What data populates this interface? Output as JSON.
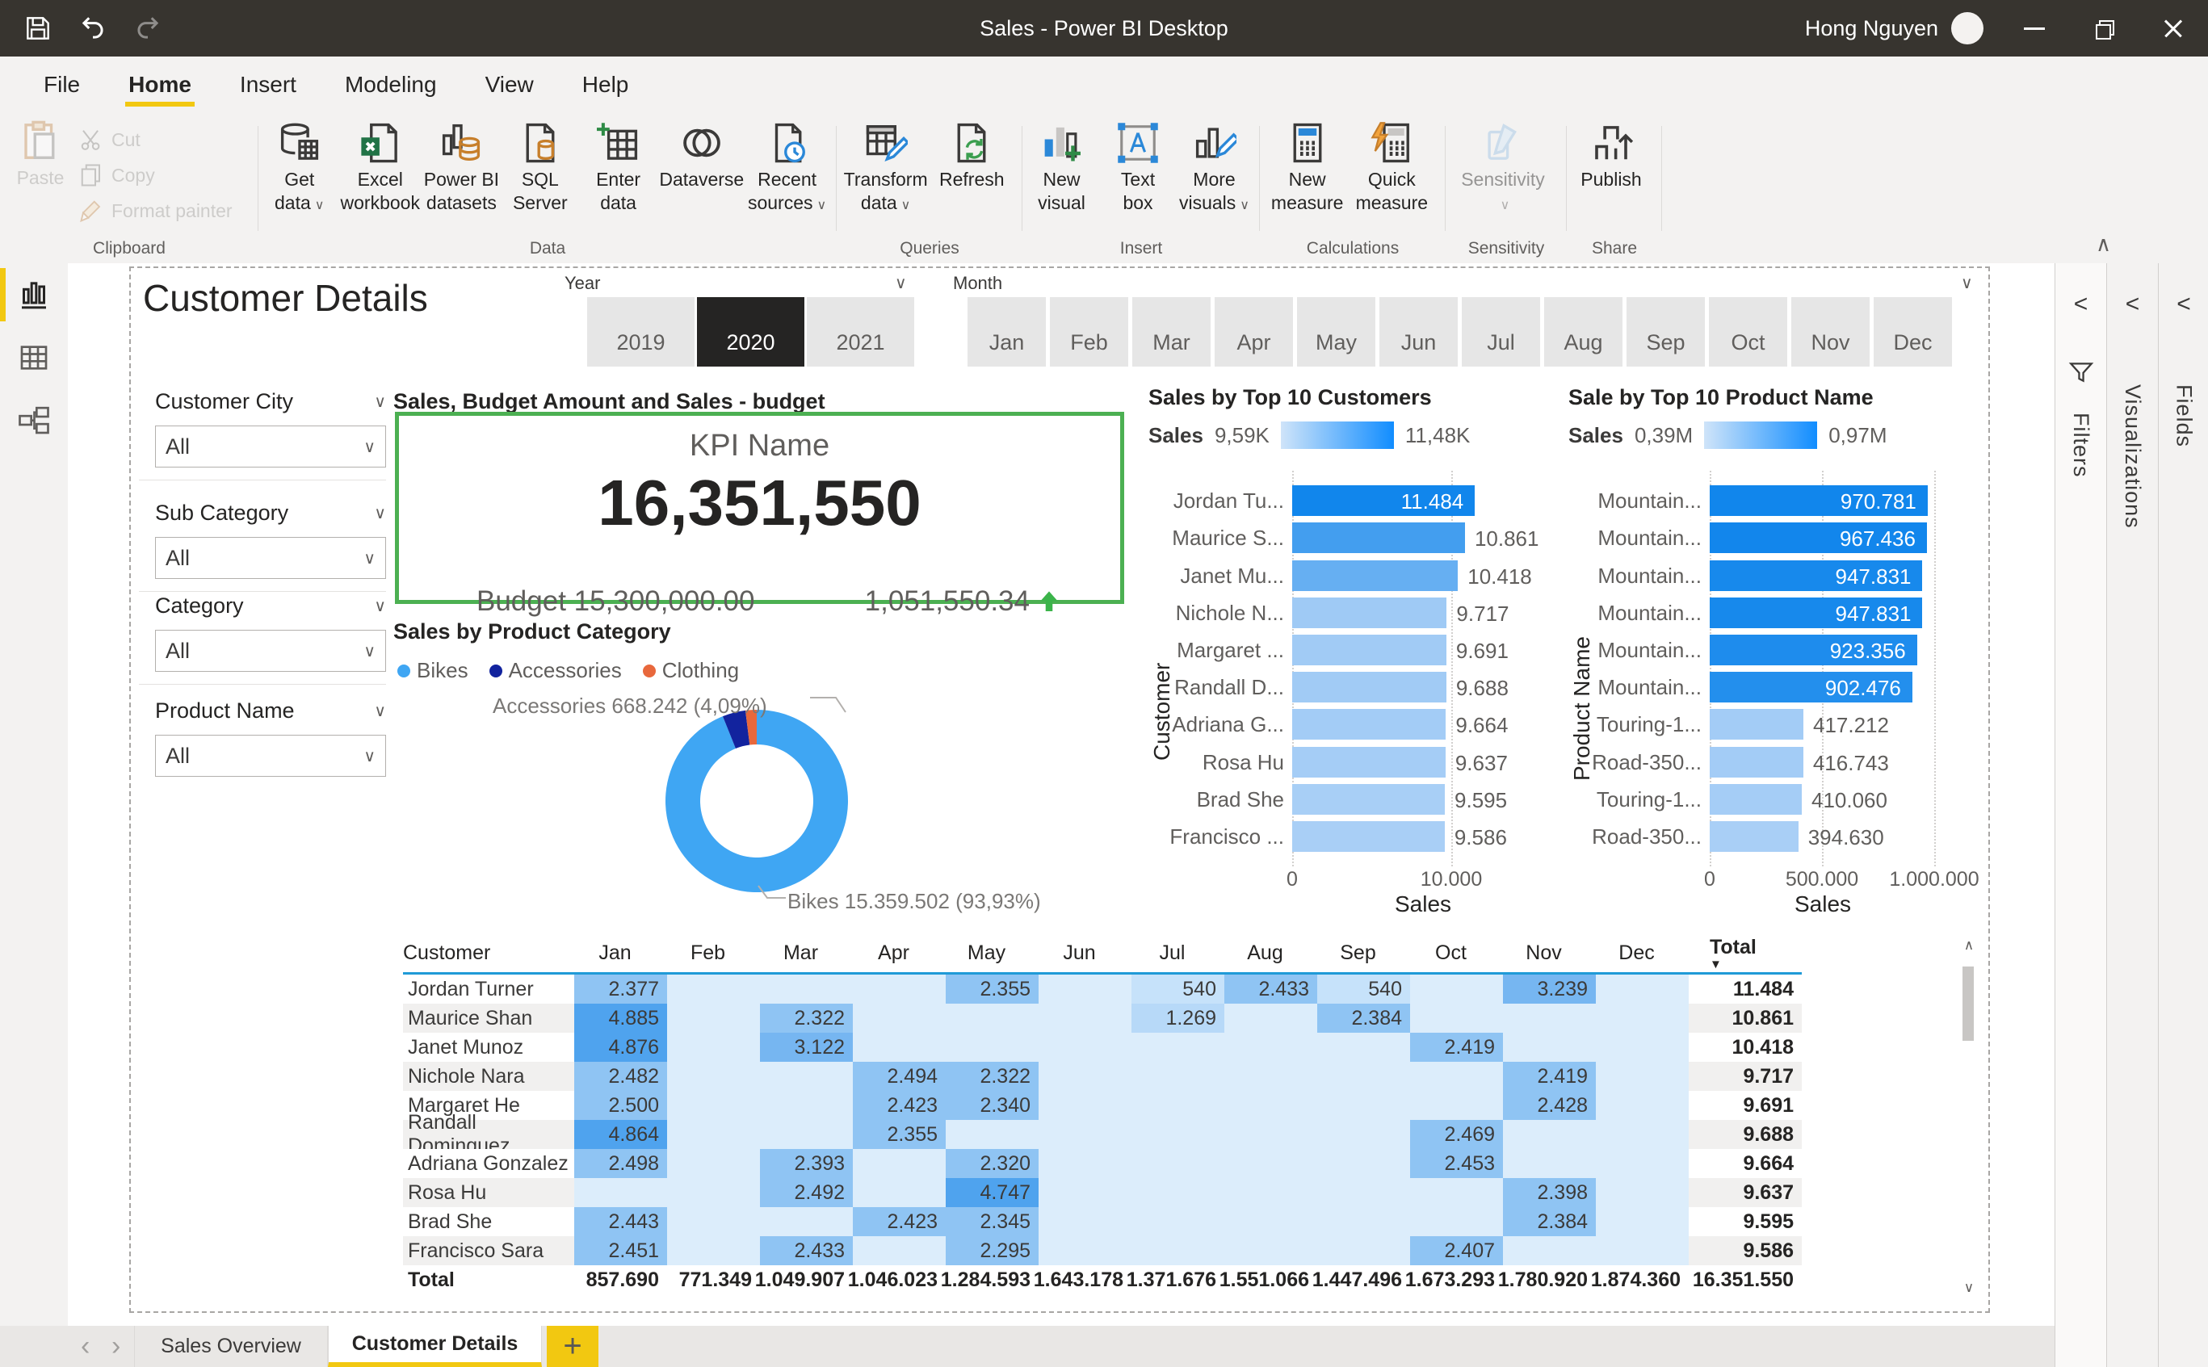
{
  "title_bar": {
    "app_title": "Sales - Power BI Desktop",
    "user_name": "Hong Nguyen"
  },
  "menu_bar": {
    "items": [
      "File",
      "Home",
      "Insert",
      "Modeling",
      "View",
      "Help"
    ],
    "active_index": 1
  },
  "ribbon": {
    "groups": [
      {
        "label": "Clipboard",
        "layout": "clipboard",
        "items": [
          {
            "lines": [
              "Paste"
            ],
            "icon": "paste",
            "disabled": true,
            "big": true
          },
          {
            "lines": [
              "Cut"
            ],
            "icon": "cut",
            "disabled": true
          },
          {
            "lines": [
              "Copy"
            ],
            "icon": "copy",
            "disabled": true
          },
          {
            "lines": [
              "Format painter"
            ],
            "icon": "brush",
            "disabled": true
          }
        ]
      },
      {
        "label": "Data",
        "items": [
          {
            "lines": [
              "Get",
              "data"
            ],
            "dropdown": true,
            "icon": "get-data"
          },
          {
            "lines": [
              "Excel",
              "workbook"
            ],
            "icon": "excel"
          },
          {
            "lines": [
              "Power BI",
              "datasets"
            ],
            "icon": "pbi-datasets"
          },
          {
            "lines": [
              "SQL",
              "Server"
            ],
            "icon": "sql-server"
          },
          {
            "lines": [
              "Enter",
              "data"
            ],
            "icon": "enter-data"
          },
          {
            "lines": [
              "Dataverse"
            ],
            "icon": "dataverse"
          },
          {
            "lines": [
              "Recent",
              "sources"
            ],
            "dropdown": true,
            "icon": "recent-sources"
          }
        ]
      },
      {
        "label": "Queries",
        "items": [
          {
            "lines": [
              "Transform",
              "data"
            ],
            "dropdown": true,
            "icon": "transform"
          },
          {
            "lines": [
              "Refresh"
            ],
            "icon": "refresh"
          }
        ]
      },
      {
        "label": "Insert",
        "items": [
          {
            "lines": [
              "New",
              "visual"
            ],
            "icon": "new-visual"
          },
          {
            "lines": [
              "Text",
              "box"
            ],
            "icon": "text-box"
          },
          {
            "lines": [
              "More",
              "visuals"
            ],
            "dropdown": true,
            "icon": "more-visuals"
          }
        ]
      },
      {
        "label": "Calculations",
        "items": [
          {
            "lines": [
              "New",
              "measure"
            ],
            "icon": "new-measure"
          },
          {
            "lines": [
              "Quick",
              "measure"
            ],
            "icon": "quick-measure"
          }
        ]
      },
      {
        "label": "Sensitivity",
        "items": [
          {
            "lines": [
              "Sensitivity"
            ],
            "dropdown_below": true,
            "icon": "sensitivity",
            "disabled": true
          }
        ]
      },
      {
        "label": "Share",
        "items": [
          {
            "lines": [
              "Publish"
            ],
            "icon": "publish"
          }
        ]
      }
    ]
  },
  "view_rail": {
    "views": [
      {
        "icon": "report-view",
        "active": true
      },
      {
        "icon": "data-view",
        "active": false
      },
      {
        "icon": "model-view",
        "active": false
      }
    ]
  },
  "page": {
    "title": "Customer Details",
    "slicers": {
      "year": {
        "label": "Year",
        "options": [
          "2019",
          "2020",
          "2021"
        ],
        "selected": "2020"
      },
      "month": {
        "label": "Month",
        "options": [
          "Jan",
          "Feb",
          "Mar",
          "Apr",
          "May",
          "Jun",
          "Jul",
          "Aug",
          "Sep",
          "Oct",
          "Nov",
          "Dec"
        ],
        "selected": null
      }
    },
    "filter_cards": [
      {
        "label": "Customer City",
        "value": "All"
      },
      {
        "label": "Sub Category",
        "value": "All"
      },
      {
        "label": "Category",
        "value": "All"
      },
      {
        "label": "Product Name",
        "value": "All"
      }
    ],
    "kpi": {
      "visual_title": "Sales, Budget Amount and Sales - budget",
      "name": "KPI Name",
      "value": "16,351,550",
      "budget_label": "Budget 15,300,000.00",
      "delta": "1,051,550.34"
    },
    "donut": {
      "visual_title": "Sales by Product Category",
      "categories": [
        {
          "label": "Bikes",
          "color": "#3FA6F3",
          "percent": 93.93
        },
        {
          "label": "Accessories",
          "color": "#12239E",
          "percent": 4.09
        },
        {
          "label": "Clothing",
          "color": "#E8683C",
          "percent": null
        }
      ],
      "callout_accessories": "Accessories 668.242 (4,09%)",
      "callout_bikes": "Bikes 15.359.502 (93,93%)"
    },
    "top_customers": {
      "visual_title": "Sales by Top 10 Customers",
      "legend": {
        "measure": "Sales",
        "min": "9,59K",
        "max": "11,48K"
      },
      "y_axis_title": "Customer",
      "x_axis_title": "Sales",
      "x_ticks": [
        {
          "label": "0",
          "value": 0
        },
        {
          "label": "10.000",
          "value": 10000
        }
      ],
      "bars": [
        {
          "label": "Jordan Tu...",
          "value": 11484,
          "value_label": "11.484"
        },
        {
          "label": "Maurice S...",
          "value": 10861,
          "value_label": "10.861"
        },
        {
          "label": "Janet Mu...",
          "value": 10418,
          "value_label": "10.418"
        },
        {
          "label": "Nichole N...",
          "value": 9717,
          "value_label": "9.717"
        },
        {
          "label": "Margaret ...",
          "value": 9691,
          "value_label": "9.691"
        },
        {
          "label": "Randall D...",
          "value": 9688,
          "value_label": "9.688"
        },
        {
          "label": "Adriana G...",
          "value": 9664,
          "value_label": "9.664"
        },
        {
          "label": "Rosa Hu",
          "value": 9637,
          "value_label": "9.637"
        },
        {
          "label": "Brad She",
          "value": 9595,
          "value_label": "9.595"
        },
        {
          "label": "Francisco ...",
          "value": 9586,
          "value_label": "9.586"
        }
      ]
    },
    "top_products": {
      "visual_title": "Sale by Top 10 Product Name",
      "legend": {
        "measure": "Sales",
        "min": "0,39M",
        "max": "0,97M"
      },
      "y_axis_title": "Product Name",
      "x_axis_title": "Sales",
      "x_ticks": [
        {
          "label": "0",
          "value": 0
        },
        {
          "label": "500.000",
          "value": 500000
        },
        {
          "label": "1.000.000",
          "value": 1000000
        }
      ],
      "bars": [
        {
          "label": "Mountain...",
          "value": 970781,
          "value_label": "970.781"
        },
        {
          "label": "Mountain...",
          "value": 967436,
          "value_label": "967.436"
        },
        {
          "label": "Mountain...",
          "value": 947831,
          "value_label": "947.831"
        },
        {
          "label": "Mountain...",
          "value": 947831,
          "value_label": "947.831"
        },
        {
          "label": "Mountain...",
          "value": 923356,
          "value_label": "923.356"
        },
        {
          "label": "Mountain...",
          "value": 902476,
          "value_label": "902.476"
        },
        {
          "label": "Touring-1...",
          "value": 417212,
          "value_label": "417.212"
        },
        {
          "label": "Road-350...",
          "value": 416743,
          "value_label": "416.743"
        },
        {
          "label": "Touring-1...",
          "value": 410060,
          "value_label": "410.060"
        },
        {
          "label": "Road-350...",
          "value": 394630,
          "value_label": "394.630"
        }
      ]
    },
    "matrix": {
      "columns": [
        "Customer",
        "Jan",
        "Feb",
        "Mar",
        "Apr",
        "May",
        "Jun",
        "Jul",
        "Aug",
        "Sep",
        "Oct",
        "Nov",
        "Dec",
        "Total"
      ],
      "sort_column": "Total",
      "rows": [
        {
          "name": "Jordan Turner",
          "cells": [
            "2.377",
            null,
            null,
            null,
            "2.355",
            null,
            "540",
            "2.433",
            "540",
            null,
            "3.239",
            null
          ],
          "total": "11.484"
        },
        {
          "name": "Maurice Shan",
          "cells": [
            "4.885",
            null,
            "2.322",
            null,
            null,
            null,
            "1.269",
            null,
            "2.384",
            null,
            null,
            null
          ],
          "total": "10.861"
        },
        {
          "name": "Janet Munoz",
          "cells": [
            "4.876",
            null,
            "3.122",
            null,
            null,
            null,
            null,
            null,
            null,
            "2.419",
            null,
            null
          ],
          "total": "10.418"
        },
        {
          "name": "Nichole Nara",
          "cells": [
            "2.482",
            null,
            null,
            "2.494",
            "2.322",
            null,
            null,
            null,
            null,
            null,
            "2.419",
            null
          ],
          "total": "9.717"
        },
        {
          "name": "Margaret He",
          "cells": [
            "2.500",
            null,
            null,
            "2.423",
            "2.340",
            null,
            null,
            null,
            null,
            null,
            "2.428",
            null
          ],
          "total": "9.691"
        },
        {
          "name": "Randall Dominguez",
          "cells": [
            "4.864",
            null,
            null,
            "2.355",
            null,
            null,
            null,
            null,
            null,
            "2.469",
            null,
            null
          ],
          "total": "9.688"
        },
        {
          "name": "Adriana Gonzalez",
          "cells": [
            "2.498",
            null,
            "2.393",
            null,
            "2.320",
            null,
            null,
            null,
            null,
            "2.453",
            null,
            null
          ],
          "total": "9.664"
        },
        {
          "name": "Rosa Hu",
          "cells": [
            null,
            null,
            "2.492",
            null,
            "4.747",
            null,
            null,
            null,
            null,
            null,
            "2.398",
            null
          ],
          "total": "9.637"
        },
        {
          "name": "Brad She",
          "cells": [
            "2.443",
            null,
            null,
            "2.423",
            "2.345",
            null,
            null,
            null,
            null,
            null,
            "2.384",
            null
          ],
          "total": "9.595"
        },
        {
          "name": "Francisco Sara",
          "cells": [
            "2.451",
            null,
            "2.433",
            null,
            "2.295",
            null,
            null,
            null,
            null,
            "2.407",
            null,
            null
          ],
          "total": "9.586"
        }
      ],
      "total_row": {
        "name": "Total",
        "cells": [
          "857.690",
          "771.349",
          "1.049.907",
          "1.046.023",
          "1.284.593",
          "1.643.178",
          "1.371.676",
          "1.551.066",
          "1.447.496",
          "1.673.293",
          "1.780.920",
          "1.874.360"
        ],
        "total": "16.351.550"
      }
    }
  },
  "right_panels": [
    {
      "label": "Filters",
      "icon": "filter-funnel"
    },
    {
      "label": "Visualizations"
    },
    {
      "label": "Fields"
    }
  ],
  "page_tabs": {
    "tabs": [
      "Sales Overview",
      "Customer Details"
    ],
    "active_index": 1
  },
  "colors": {
    "accent_yellow": "#F2C811",
    "titlebar_bg": "#37342F",
    "kpi_border": "#4CB052",
    "kpi_delta_green": "#3BB44A",
    "bar_min": "#A9CFF6",
    "bar_max": "#1186EC",
    "legend_gradient_start": "#CFE4F9",
    "legend_gradient_end": "#118DFF",
    "matrix_header_line": "#1F9AD7",
    "matrix_cell_empty": "#DCEDFB",
    "matrix_cell_low": "#C6E2FA",
    "matrix_cell_mid_low": "#B7D9F8",
    "matrix_cell_mid": "#8FC4F3",
    "matrix_cell_high": "#76B6F1",
    "matrix_cell_top": "#4FA3EE",
    "slicer_selected_bg": "#252423"
  }
}
